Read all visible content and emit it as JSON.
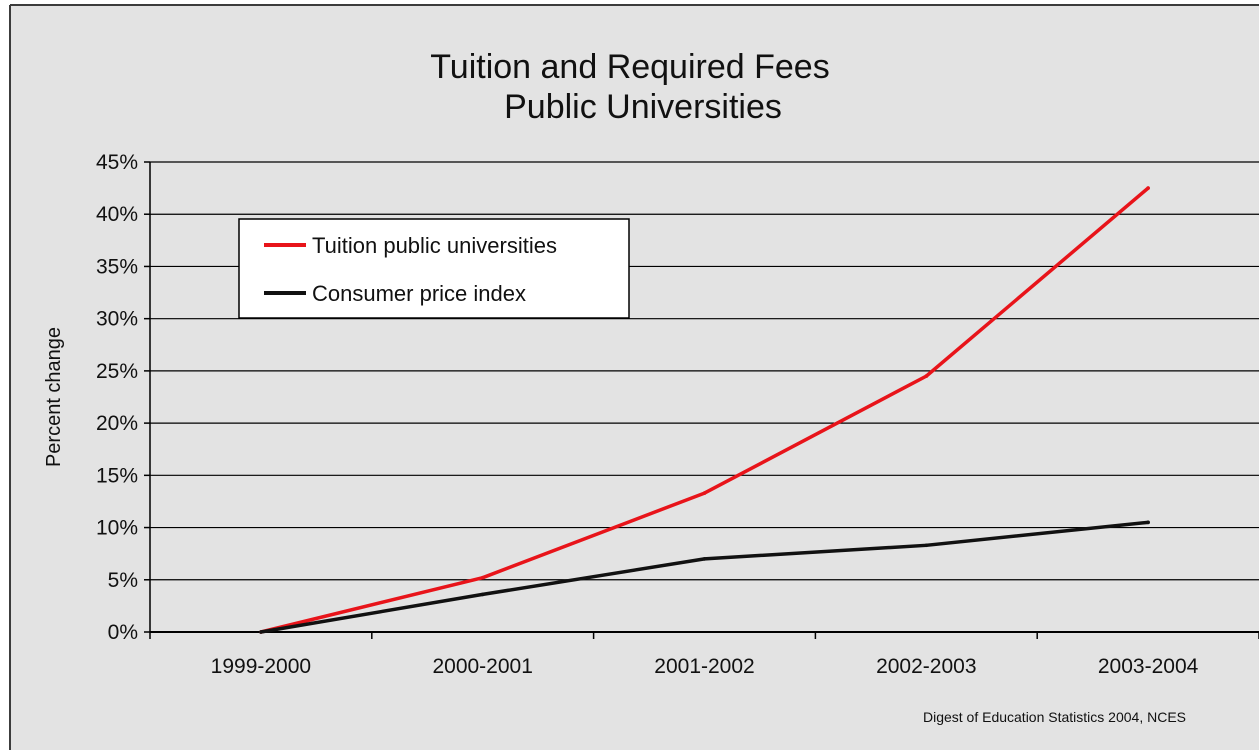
{
  "chart_data": {
    "type": "line",
    "title": [
      "Tuition and Required Fees",
      "Public Universities"
    ],
    "xlabel": "",
    "ylabel": "Percent change",
    "categories": [
      "1999-2000",
      "2000-2001",
      "2001-2002",
      "2002-2003",
      "2003-2004"
    ],
    "ylim": [
      0,
      45
    ],
    "ytick_step": 5,
    "ytick_suffix": "%",
    "grid": true,
    "legend_position": "top-left",
    "series": [
      {
        "name": "Tuition public universities",
        "color": "#e8141a",
        "values": [
          0,
          5.2,
          13.3,
          24.5,
          42.5
        ]
      },
      {
        "name": "Consumer price index",
        "color": "#111111",
        "values": [
          0,
          3.6,
          7.0,
          8.3,
          10.5
        ]
      }
    ],
    "source": "Digest of Education Statistics 2004, NCES",
    "background": "#e3e3e3"
  }
}
